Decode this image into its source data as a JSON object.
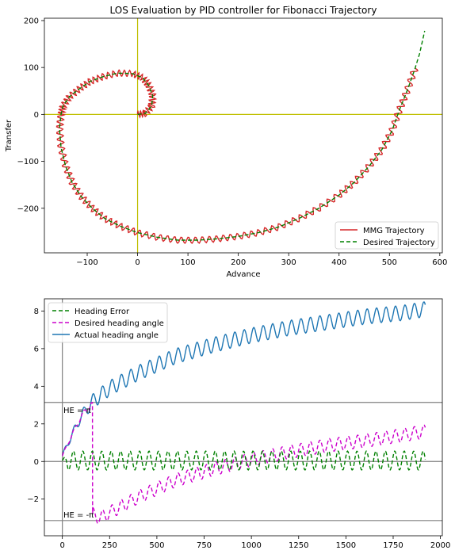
{
  "chart_data": [
    {
      "type": "line",
      "title": "LOS Evaluation by PID controller for Fibonacci Trajectory",
      "xlabel": "Advance",
      "ylabel": "Transfer",
      "xlim": [
        -185,
        605
      ],
      "ylim": [
        -295,
        205
      ],
      "xticks": [
        -100,
        0,
        100,
        200,
        300,
        400,
        500,
        600
      ],
      "yticks": [
        -200,
        -100,
        0,
        100,
        200
      ],
      "xtick_labels": [
        "−100",
        "0",
        "100",
        "200",
        "300",
        "400",
        "500",
        "600"
      ],
      "ytick_labels": [
        "−200",
        "−100",
        "0",
        "100",
        "200"
      ],
      "grid": false,
      "reference_lines": [
        {
          "orientation": "vertical",
          "value": 0,
          "color": "#bfbf00"
        },
        {
          "orientation": "horizontal",
          "value": 0,
          "color": "#bfbf00"
        }
      ],
      "legend_position": "lower-right",
      "spiral": {
        "start": [
          0,
          0
        ],
        "end_approx": [
          570,
          178
        ],
        "wobble_amplitude_approx": 3
      },
      "series": [
        {
          "name": "MMG Trajectory",
          "color": "#d62728",
          "style": "solid"
        },
        {
          "name": "Desired Trajectory",
          "color": "#008000",
          "style": "dashed"
        }
      ]
    },
    {
      "type": "line",
      "title": "",
      "xlabel": "",
      "ylabel": "",
      "xlim": [
        -95,
        2010
      ],
      "ylim": [
        -3.95,
        8.65
      ],
      "xticks": [
        0,
        250,
        500,
        750,
        1000,
        1250,
        1500,
        1750,
        2000
      ],
      "yticks": [
        -2,
        0,
        2,
        4,
        6,
        8
      ],
      "xtick_labels": [
        "0",
        "250",
        "500",
        "750",
        "1000",
        "1250",
        "1500",
        "1750",
        "2000"
      ],
      "ytick_labels": [
        "−2",
        "0",
        "2",
        "4",
        "6",
        "8"
      ],
      "grid": false,
      "reference_lines": [
        {
          "orientation": "vertical",
          "value": 0,
          "color": "#808080"
        },
        {
          "orientation": "horizontal",
          "value": 0,
          "color": "#808080"
        },
        {
          "orientation": "horizontal",
          "value": 3.1416,
          "color": "#808080"
        },
        {
          "orientation": "horizontal",
          "value": -3.1416,
          "color": "#808080"
        }
      ],
      "annotations": [
        {
          "text": "HE = π",
          "x": 5,
          "y": 2.8
        },
        {
          "text": "HE = -π",
          "x": 5,
          "y": -2.8
        }
      ],
      "legend_position": "upper-left",
      "series": [
        {
          "name": "Heading Error",
          "color": "#008000",
          "style": "dashed",
          "t": [
            0,
            1920
          ],
          "mean_approx": 0.05,
          "amplitude_approx": 0.5,
          "period_approx": 50
        },
        {
          "name": "Desired heading angle",
          "color": "#cc00cc",
          "style": "dashed",
          "t": [
            0,
            1920
          ],
          "wrap_at_t": 160,
          "points_approx": [
            [
              0,
              0.3
            ],
            [
              50,
              1.4
            ],
            [
              100,
              2.4
            ],
            [
              160,
              3.14
            ],
            [
              160,
              -2.8
            ],
            [
              200,
              -3.0
            ],
            [
              400,
              -1.9
            ],
            [
              600,
              -1.0
            ],
            [
              800,
              -0.4
            ],
            [
              1000,
              0.1
            ],
            [
              1200,
              0.5
            ],
            [
              1400,
              0.85
            ],
            [
              1600,
              1.1
            ],
            [
              1800,
              1.4
            ],
            [
              1920,
              1.6
            ]
          ],
          "amplitude_approx": 0.35,
          "period_approx": 50
        },
        {
          "name": "Actual heading angle",
          "color": "#1f77b4",
          "style": "solid",
          "t": [
            0,
            1920
          ],
          "points_approx": [
            [
              0,
              0.3
            ],
            [
              50,
              1.4
            ],
            [
              100,
              2.4
            ],
            [
              160,
              3.2
            ],
            [
              250,
              3.9
            ],
            [
              400,
              4.7
            ],
            [
              600,
              5.6
            ],
            [
              800,
              6.2
            ],
            [
              1000,
              6.7
            ],
            [
              1200,
              7.1
            ],
            [
              1400,
              7.4
            ],
            [
              1600,
              7.7
            ],
            [
              1800,
              7.9
            ],
            [
              1920,
              8.1
            ]
          ],
          "amplitude_approx": 0.4,
          "period_approx": 50
        }
      ]
    }
  ]
}
